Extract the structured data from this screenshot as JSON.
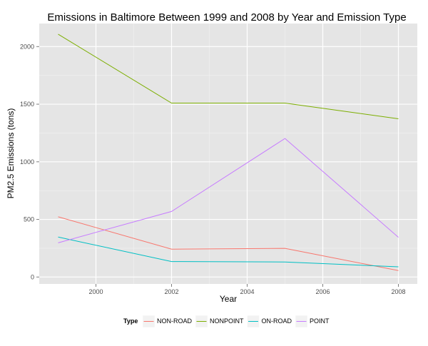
{
  "chart_data": {
    "type": "line",
    "title": "Emissions in Baltimore Between 1999 and 2008 by Year and Emission Type",
    "xlabel": "Year",
    "ylabel": "PM2.5 Emissions (tons)",
    "x": [
      1999,
      2002,
      2005,
      2008
    ],
    "xlim": [
      1998.5,
      2008.5
    ],
    "ylim": [
      -60,
      2200
    ],
    "x_ticks": [
      2000,
      2002,
      2004,
      2006,
      2008
    ],
    "y_ticks": [
      0,
      500,
      1000,
      1500,
      2000
    ],
    "grid": true,
    "legend": {
      "title": "Type",
      "position": "bottom"
    },
    "series": [
      {
        "name": "NON-ROAD",
        "color": "#F8766D",
        "values": [
          522.9,
          242.0,
          248.9,
          55.8
        ]
      },
      {
        "name": "NONPOINT",
        "color": "#7CAE00",
        "values": [
          2107.6,
          1509.5,
          1509.5,
          1373.2
        ]
      },
      {
        "name": "ON-ROAD",
        "color": "#00BFC4",
        "values": [
          346.8,
          134.3,
          130.4,
          88.3
        ]
      },
      {
        "name": "POINT",
        "color": "#C77CFF",
        "values": [
          296.8,
          569.3,
          1202.5,
          345.0
        ]
      }
    ]
  }
}
